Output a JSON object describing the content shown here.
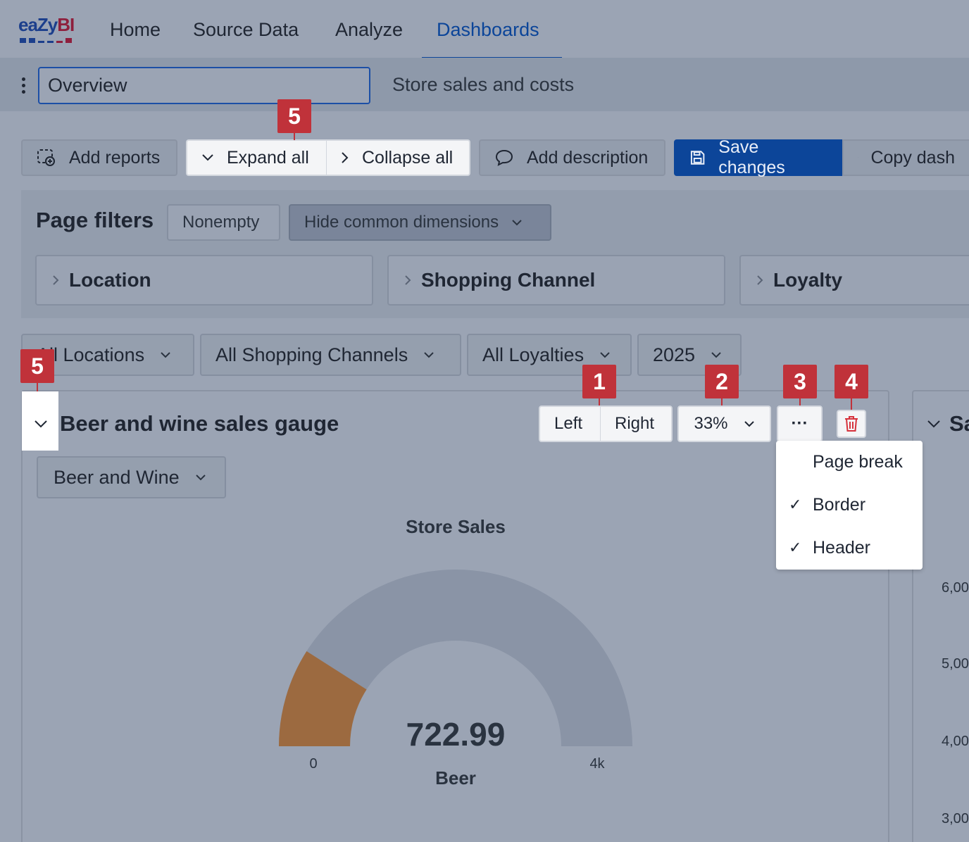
{
  "nav": {
    "logo_text_a": "ea",
    "logo_text_b": "Zy",
    "logo_text_c": "BI",
    "items": [
      {
        "label": "Home"
      },
      {
        "label": "Source Data"
      },
      {
        "label": "Analyze"
      },
      {
        "label": "Dashboards",
        "active": true
      }
    ]
  },
  "titlebar": {
    "dashboard_name": "Overview",
    "subtitle": "Store sales and costs"
  },
  "toolbar": {
    "add_reports": "Add reports",
    "expand_all": "Expand all",
    "collapse_all": "Collapse all",
    "add_description": "Add description",
    "save_changes": "Save changes",
    "copy_dashboard": "Copy dash"
  },
  "page_filters": {
    "title": "Page filters",
    "nonempty": "Nonempty",
    "hide_common": "Hide common dimensions",
    "dimensions": [
      "Location",
      "Shopping Channel",
      "Loyalty"
    ]
  },
  "selectors": [
    "All Locations",
    "All Shopping Channels",
    "All Loyalties",
    "2025"
  ],
  "badges": [
    "1",
    "2",
    "3",
    "4",
    "5",
    "5"
  ],
  "report": {
    "title": "Beer and wine sales gauge",
    "align_left": "Left",
    "align_right": "Right",
    "width": "33%",
    "more": "···",
    "member_selector": "Beer and Wine",
    "menu": [
      {
        "label": "Page break",
        "checked": false
      },
      {
        "label": "Border",
        "checked": true
      },
      {
        "label": "Header",
        "checked": true
      }
    ],
    "check_glyph": "✓"
  },
  "report2": {
    "title_fragment": "Sa",
    "axis_ticks": [
      "6,00",
      "5,00",
      "4,00",
      "3,00"
    ]
  },
  "chart_data": {
    "type": "gauge",
    "title": "Store Sales",
    "value": 722.99,
    "value_label": "722.99",
    "series_label": "Beer",
    "min": 0,
    "max": 4000,
    "min_label": "0",
    "max_label": "4k",
    "fill_color": "#9c6a40",
    "track_color": "#8a94a6"
  },
  "colors": {
    "accent": "#0c4599",
    "badge": "#c0323a",
    "background": "#9ba4b4"
  }
}
